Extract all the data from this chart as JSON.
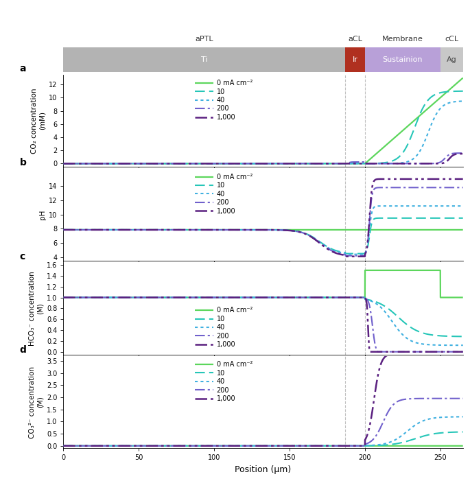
{
  "x_range": [
    0,
    265
  ],
  "x_label": "Position (μm)",
  "Ti_end": 187,
  "Ir_start": 187,
  "Ir_end": 200,
  "Membrane_start": 200,
  "Membrane_end": 250,
  "cCL_start": 250,
  "vlines": [
    187,
    200
  ],
  "currents": [
    0,
    10,
    40,
    200,
    1000
  ],
  "colors": {
    "0": "#5cd65c",
    "10": "#26c6b8",
    "40": "#40b0e0",
    "200": "#7060cc",
    "1000": "#5a2080"
  },
  "panel_a": {
    "ylabel": "CO₂ concentration\n(mM)",
    "ylim": [
      -0.5,
      13.5
    ],
    "yticks": [
      0,
      2,
      4,
      6,
      8,
      10,
      12
    ]
  },
  "panel_b": {
    "ylabel": "pH",
    "ylim": [
      3.5,
      16.5
    ],
    "yticks": [
      4,
      6,
      8,
      10,
      12,
      14
    ]
  },
  "panel_c": {
    "ylabel": "HCO₃⁻ concentration\n(M)",
    "ylim": [
      -0.05,
      1.65
    ],
    "yticks": [
      0,
      0.2,
      0.4,
      0.6,
      0.8,
      1.0,
      1.2,
      1.4,
      1.6
    ]
  },
  "panel_d": {
    "ylabel": "CO₃²⁻ concentration\n(M)",
    "ylim": [
      -0.1,
      3.7
    ],
    "yticks": [
      0,
      0.5,
      1.0,
      1.5,
      2.0,
      2.5,
      3.0,
      3.5
    ]
  },
  "header_gray": "#b3b3b3",
  "header_Ir": "#b03020",
  "header_Sustainion": "#b8a0d8",
  "header_Ag": "#c8c8c8",
  "legend_labels": [
    "0 mA cm⁻²",
    "10",
    "40",
    "200",
    "1,000"
  ]
}
